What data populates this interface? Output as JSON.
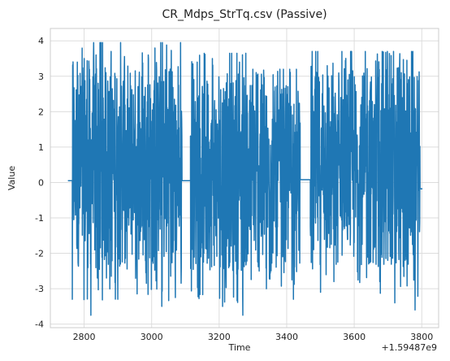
{
  "chart_data": {
    "type": "line",
    "title": "CR_Mdps_StrTq.csv (Passive)",
    "xlabel": "Time",
    "ylabel": "Value",
    "offset_label": "+1.59487e9",
    "xlim": [
      2700,
      3850
    ],
    "ylim": [
      -4.1,
      4.35
    ],
    "x_ticks": [
      2800,
      3000,
      3200,
      3400,
      3600,
      3800
    ],
    "y_ticks": [
      -4,
      -3,
      -2,
      -1,
      0,
      1,
      2,
      3,
      4
    ],
    "grid": true,
    "series": [
      {
        "color": "#1f77b4",
        "segments": [
          {
            "x_start": 2752,
            "x_end": 2765,
            "kind": "flat",
            "y": 0.05
          },
          {
            "x_start": 2765,
            "x_end": 3090,
            "kind": "oscillating",
            "y_min": -3.7,
            "y_max": 3.95,
            "peaks": [
              [
                2780,
                3.4
              ],
              [
                2800,
                3.5
              ],
              [
                2850,
                3.95
              ],
              [
                2880,
                3.7
              ],
              [
                2990,
                3.6
              ],
              [
                3010,
                3.8
              ],
              [
                2765,
                -3.3
              ],
              [
                2820,
                -3.75
              ],
              [
                2900,
                -3.3
              ],
              [
                3030,
                -3.5
              ],
              [
                3070,
                -3.25
              ]
            ]
          },
          {
            "x_start": 3090,
            "x_end": 3115,
            "kind": "flat",
            "y": 0.05
          },
          {
            "x_start": 3115,
            "x_end": 3360,
            "kind": "oscillating",
            "y_min": -3.75,
            "y_max": 3.65,
            "peaks": [
              [
                3135,
                3.4
              ],
              [
                3180,
                3.5
              ],
              [
                3260,
                3.4
              ],
              [
                3300,
                3.2
              ],
              [
                3210,
                -3.5
              ],
              [
                3270,
                -3.75
              ],
              [
                3340,
                -3.0
              ]
            ]
          },
          {
            "x_start": 3360,
            "x_end": 3440,
            "kind": "oscillating",
            "y_min": -3.3,
            "y_max": 3.2,
            "peaks": [
              [
                3380,
                3.2
              ],
              [
                3420,
                -3.3
              ]
            ]
          },
          {
            "x_start": 3440,
            "x_end": 3470,
            "kind": "flat",
            "y": 0.08
          },
          {
            "x_start": 3470,
            "x_end": 3795,
            "kind": "oscillating",
            "y_min": -3.6,
            "y_max": 3.7,
            "peaks": [
              [
                3490,
                3.1
              ],
              [
                3520,
                3.3
              ],
              [
                3560,
                2.4
              ],
              [
                3660,
                2.2
              ],
              [
                3770,
                3.7
              ],
              [
                3500,
                -3.1
              ],
              [
                3540,
                -2.8
              ],
              [
                3720,
                -3.4
              ],
              [
                3780,
                -3.6
              ]
            ]
          },
          {
            "x_start": 3795,
            "x_end": 3802,
            "kind": "flat",
            "y": -0.18
          }
        ]
      }
    ]
  }
}
